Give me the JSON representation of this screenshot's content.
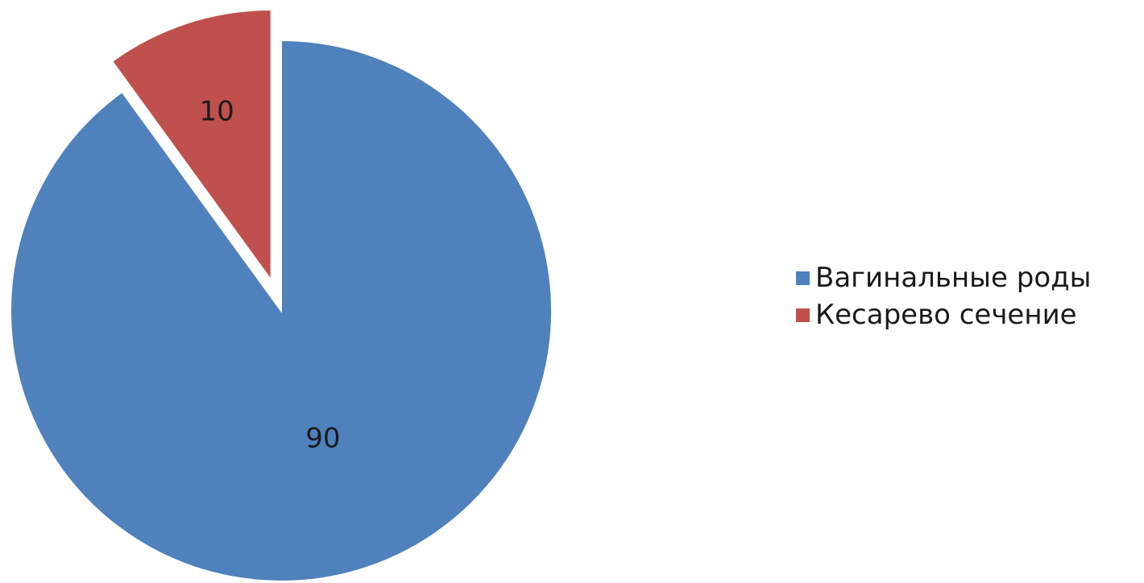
{
  "chart_data": {
    "type": "pie",
    "title": "",
    "categories": [
      "Вагинальные роды",
      "Кесарево сечение"
    ],
    "values": [
      90,
      10
    ],
    "data_labels": [
      "90",
      "10"
    ],
    "colors": [
      "#4F81BD",
      "#C0504D"
    ],
    "exploded": [
      false,
      true
    ],
    "legend_position": "right"
  },
  "legend": {
    "items": [
      {
        "label": "Вагинальные роды",
        "color": "#4F81BD"
      },
      {
        "label": "Кесарево сечение",
        "color": "#C0504D"
      }
    ]
  }
}
